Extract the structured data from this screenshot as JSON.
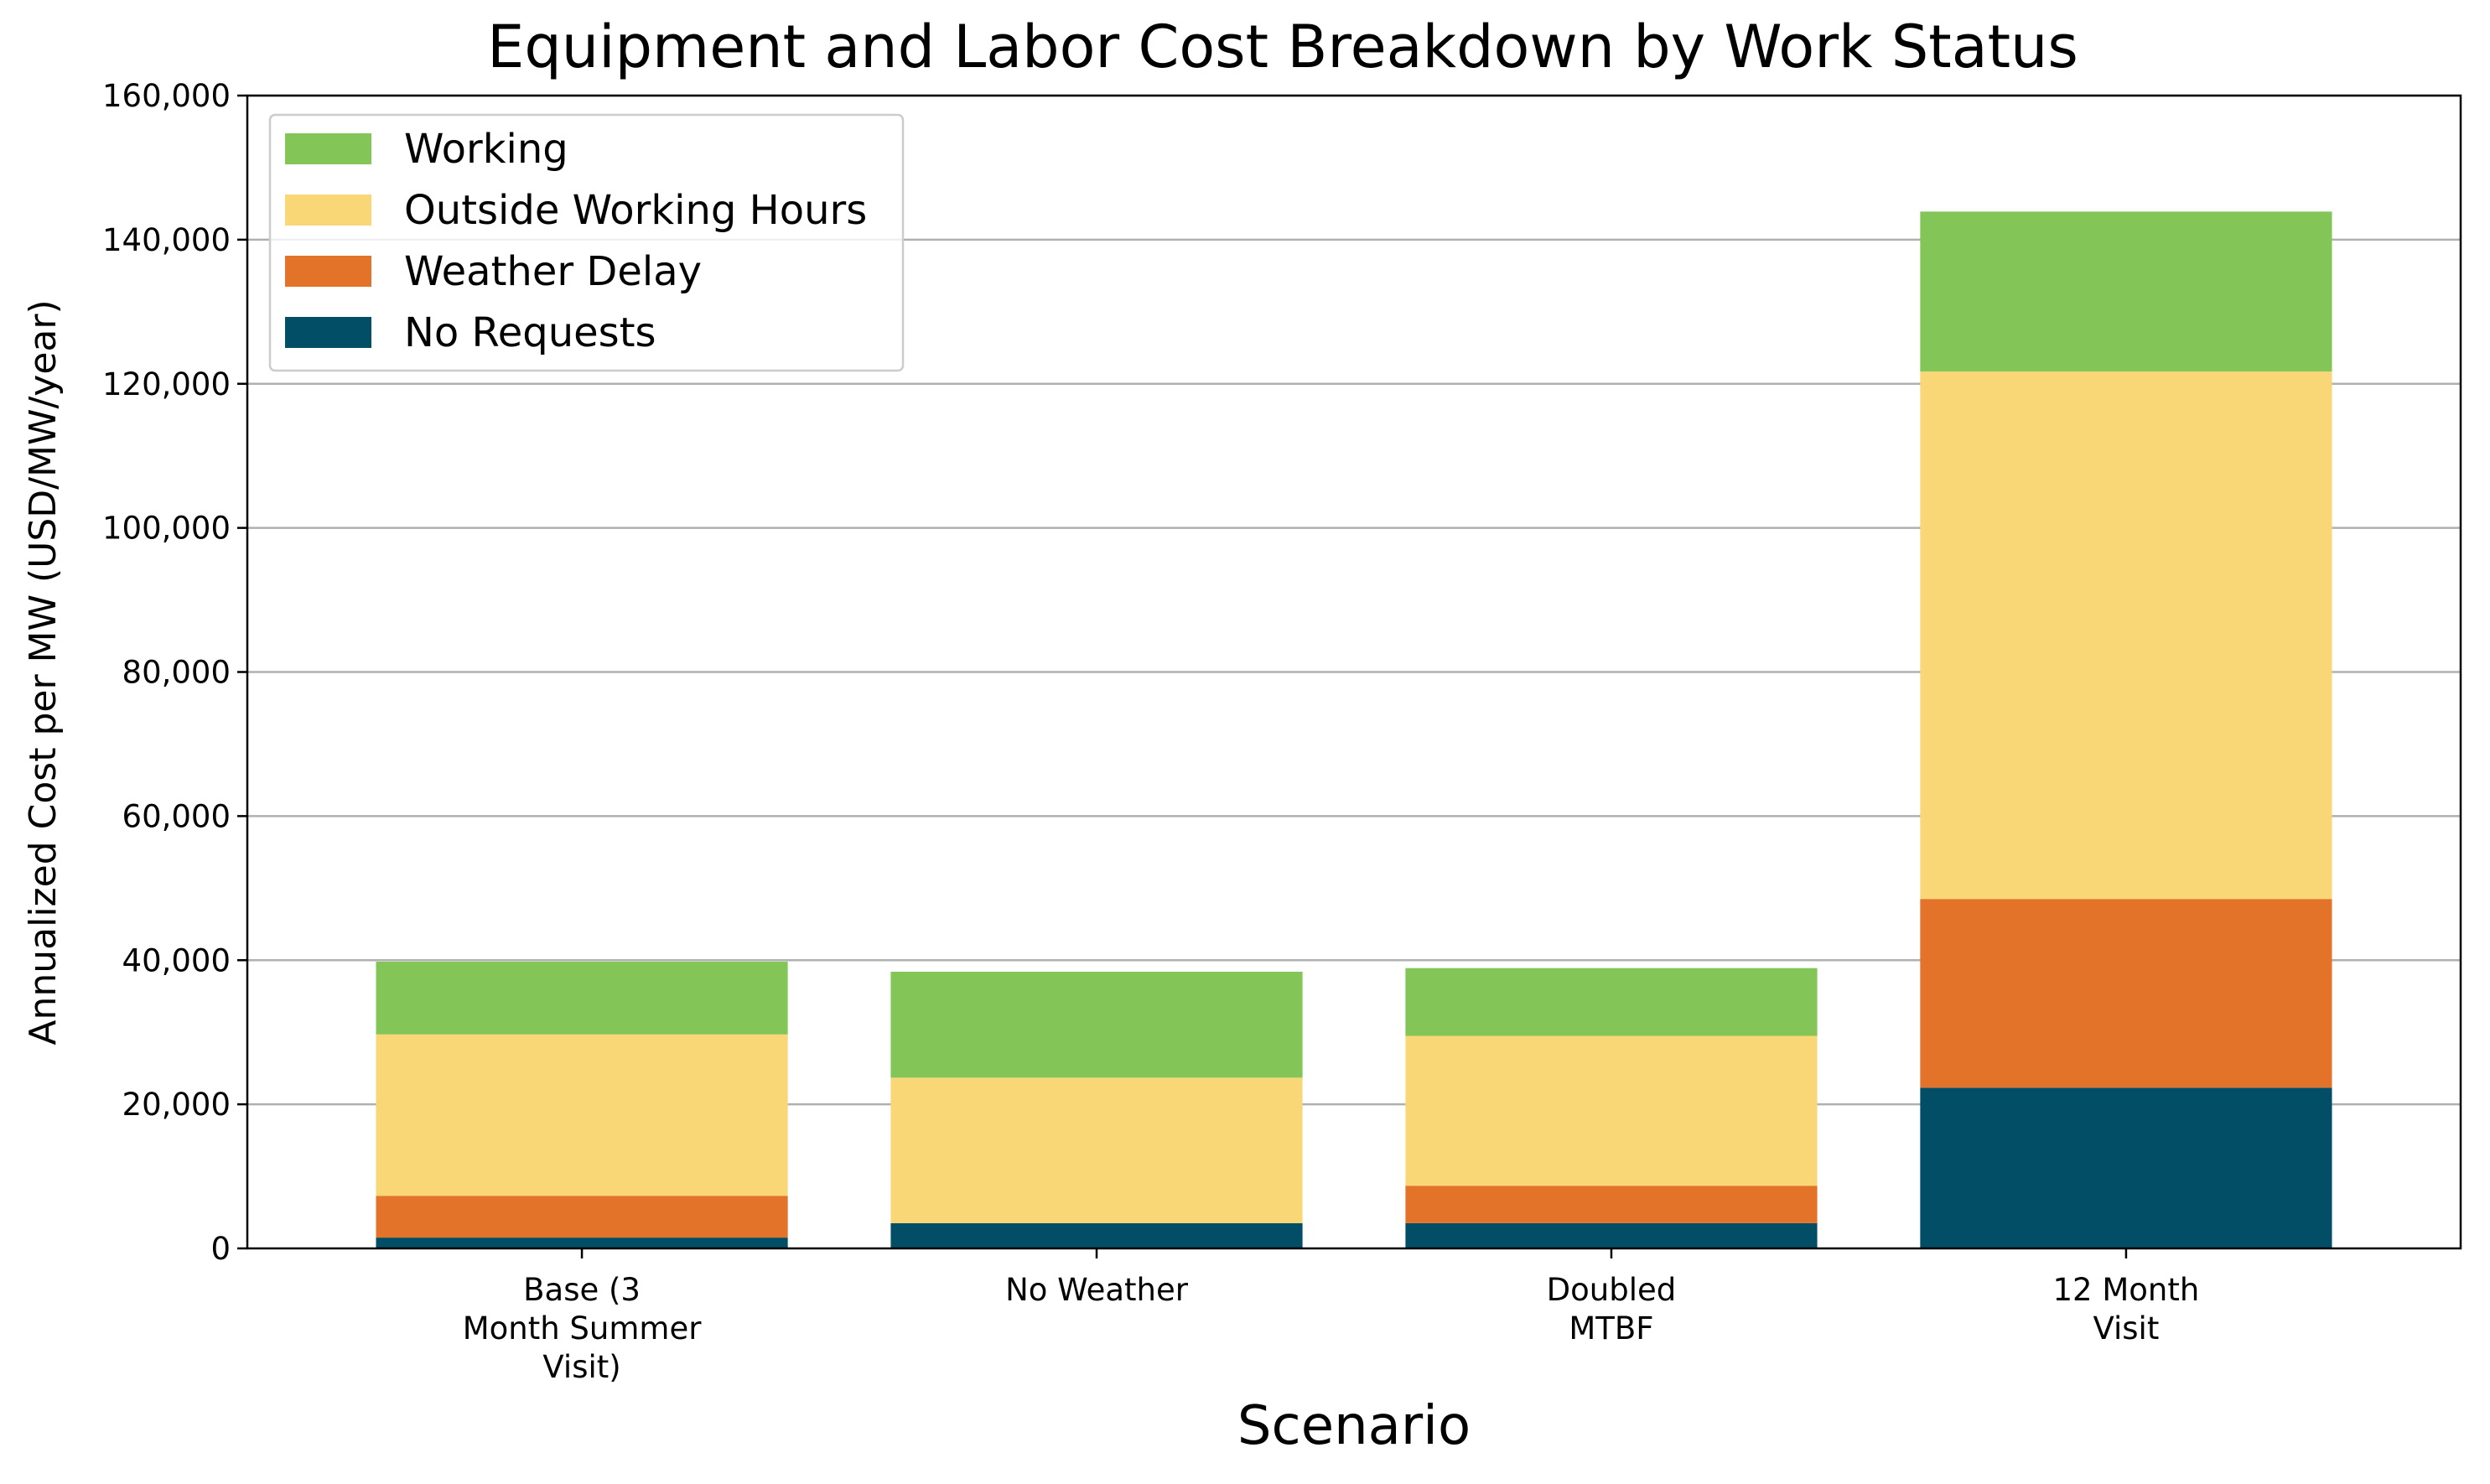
{
  "chart_data": {
    "type": "bar",
    "stacked": true,
    "title": "Equipment and Labor Cost Breakdown by Work Status",
    "xlabel": "Scenario",
    "ylabel": "Annualized Cost per MW (USD/MW/year)",
    "ylim": [
      0,
      160000
    ],
    "yticks": [
      0,
      20000,
      40000,
      60000,
      80000,
      100000,
      120000,
      140000,
      160000
    ],
    "ytick_labels": [
      "0",
      "20,000",
      "40,000",
      "60,000",
      "80,000",
      "100,000",
      "120,000",
      "140,000",
      "160,000"
    ],
    "grid": "horizontal",
    "legend_position": "top-left",
    "categories": [
      [
        "Base (3",
        "Month Summer",
        "Visit)"
      ],
      [
        "No Weather"
      ],
      [
        "Doubled",
        "MTBF"
      ],
      [
        "12 Month",
        "Visit"
      ]
    ],
    "series": [
      {
        "name": "No Requests",
        "color": "#034E67",
        "values": [
          1500,
          3500,
          3500,
          22300
        ]
      },
      {
        "name": "Weather Delay",
        "color": "#E37328",
        "values": [
          5800,
          0,
          5200,
          26200
        ]
      },
      {
        "name": "Outside Working Hours",
        "color": "#F9D776",
        "values": [
          22400,
          20200,
          20800,
          73200
        ]
      },
      {
        "name": "Working",
        "color": "#83C557",
        "values": [
          10100,
          14700,
          9400,
          22200
        ]
      }
    ],
    "legend_order": [
      "Working",
      "Outside Working Hours",
      "Weather Delay",
      "No Requests"
    ]
  }
}
